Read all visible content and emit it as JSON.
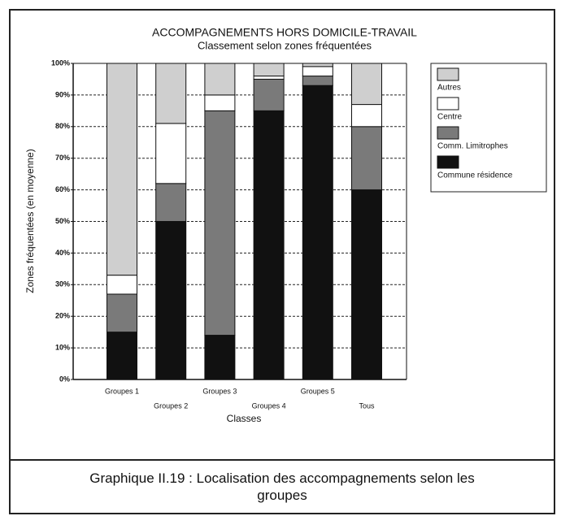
{
  "chart_data": {
    "type": "stacked_bar",
    "title": "ACCOMPAGNEMENTS HORS DOMICILE-TRAVAIL",
    "subtitle": "Classement selon zones fréquentées",
    "y_label": "Zones fréquentées (en moyenne)",
    "x_label": "Classes",
    "categories": [
      "Groupes 1",
      "Groupes 2",
      "Groupes 3",
      "Groupes 4",
      "Groupes 5",
      "Tous"
    ],
    "series": [
      {
        "name": "Commune résidence",
        "color": "#111111",
        "values": [
          15,
          50,
          14,
          85,
          93,
          60
        ]
      },
      {
        "name": "Comm. Limitrophes",
        "color": "#7a7a7a",
        "values": [
          12,
          12,
          71,
          10,
          3,
          20
        ]
      },
      {
        "name": "Centre",
        "color": "#ffffff",
        "values": [
          6,
          19,
          5,
          1,
          3,
          7
        ]
      },
      {
        "name": "Autres",
        "color": "#cfcfcf",
        "values": [
          67,
          19,
          10,
          4,
          1,
          13
        ]
      }
    ],
    "ylim": [
      0,
      100
    ],
    "yticks": [
      {
        "value": 0,
        "label": "0%"
      },
      {
        "value": 10,
        "label": "10%"
      },
      {
        "value": 20,
        "label": "20%"
      },
      {
        "value": 30,
        "label": "30%"
      },
      {
        "value": 40,
        "label": "40%"
      },
      {
        "value": 50,
        "label": "50%"
      },
      {
        "value": 60,
        "label": "60%"
      },
      {
        "value": 70,
        "label": "70%"
      },
      {
        "value": 80,
        "label": "80%"
      },
      {
        "value": 90,
        "label": "90%"
      },
      {
        "value": 100,
        "label": "100%"
      }
    ],
    "grid": true,
    "legend": "right",
    "caption": "Graphique II.19 : Localisation des accompagnements selon les groupes"
  }
}
